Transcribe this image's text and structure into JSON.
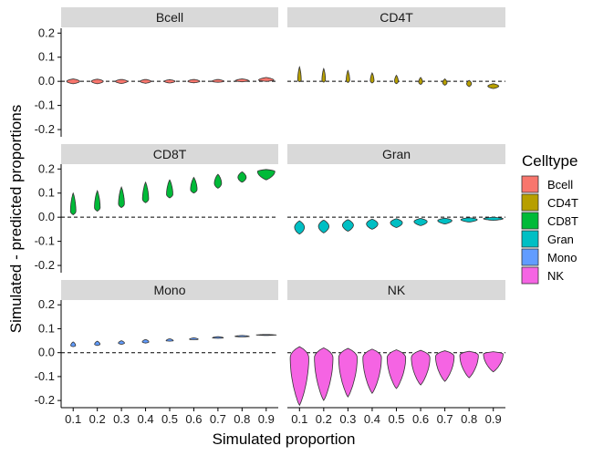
{
  "chart_data": {
    "type": "violin",
    "xlabel": "Simulated proportion",
    "ylabel": "Simulated - predicted proportions",
    "x": [
      0.1,
      0.2,
      0.3,
      0.4,
      0.5,
      0.6,
      0.7,
      0.8,
      0.9
    ],
    "x_tick_labels": [
      "0.1",
      "0.2",
      "0.3",
      "0.4",
      "0.5",
      "0.6",
      "0.7",
      "0.8",
      "0.9"
    ],
    "ylim": [
      -0.23,
      0.22
    ],
    "y_ticks": [
      -0.2,
      -0.1,
      0.0,
      0.1,
      0.2
    ],
    "y_tick_labels": [
      "-0.2",
      "-0.1",
      "0.0",
      "0.1",
      "0.2"
    ],
    "reference_line": 0,
    "legend": {
      "title": "Celltype",
      "position": "right",
      "items": [
        {
          "label": "Bcell",
          "color": "#F8766D"
        },
        {
          "label": "CD4T",
          "color": "#B79F00"
        },
        {
          "label": "CD8T",
          "color": "#00BA38"
        },
        {
          "label": "Gran",
          "color": "#00BFC4"
        },
        {
          "label": "Mono",
          "color": "#619CFF"
        },
        {
          "label": "NK",
          "color": "#F564E3"
        }
      ]
    },
    "panels": [
      {
        "name": "Bcell",
        "color": "#F8766D",
        "ranges": [
          [
            -0.01,
            0.01
          ],
          [
            -0.01,
            0.009
          ],
          [
            -0.009,
            0.008
          ],
          [
            -0.008,
            0.008
          ],
          [
            -0.007,
            0.007
          ],
          [
            -0.006,
            0.008
          ],
          [
            -0.004,
            0.008
          ],
          [
            -0.002,
            0.01
          ],
          [
            0.0,
            0.016
          ]
        ],
        "centers": [
          0,
          0,
          0,
          0,
          0,
          0,
          0,
          0.003,
          0.005
        ],
        "widths": [
          0.6,
          0.55,
          0.55,
          0.5,
          0.5,
          0.55,
          0.55,
          0.6,
          0.7
        ]
      },
      {
        "name": "CD4T",
        "color": "#B79F00",
        "ranges": [
          [
            -0.002,
            0.06
          ],
          [
            -0.004,
            0.053
          ],
          [
            -0.005,
            0.045
          ],
          [
            -0.007,
            0.035
          ],
          [
            -0.01,
            0.025
          ],
          [
            -0.013,
            0.016
          ],
          [
            -0.016,
            0.01
          ],
          [
            -0.022,
            0.004
          ],
          [
            -0.03,
            -0.01
          ]
        ],
        "centers": [
          0.005,
          0.005,
          0.004,
          0.002,
          0,
          -0.003,
          -0.006,
          -0.01,
          -0.02
        ],
        "widths": [
          0.16,
          0.16,
          0.16,
          0.17,
          0.17,
          0.18,
          0.2,
          0.22,
          0.5
        ]
      },
      {
        "name": "CD8T",
        "color": "#00BA38",
        "ranges": [
          [
            0.01,
            0.1
          ],
          [
            0.025,
            0.11
          ],
          [
            0.04,
            0.125
          ],
          [
            0.06,
            0.145
          ],
          [
            0.08,
            0.155
          ],
          [
            0.1,
            0.165
          ],
          [
            0.12,
            0.178
          ],
          [
            0.145,
            0.188
          ],
          [
            0.155,
            0.198
          ]
        ],
        "centers": [
          0.025,
          0.04,
          0.055,
          0.075,
          0.095,
          0.115,
          0.14,
          0.165,
          0.19
        ],
        "widths": [
          0.25,
          0.26,
          0.27,
          0.28,
          0.29,
          0.3,
          0.33,
          0.38,
          0.8
        ]
      },
      {
        "name": "Gran",
        "color": "#00BFC4",
        "ranges": [
          [
            -0.07,
            -0.015
          ],
          [
            -0.065,
            -0.012
          ],
          [
            -0.058,
            -0.01
          ],
          [
            -0.05,
            -0.008
          ],
          [
            -0.043,
            -0.006
          ],
          [
            -0.035,
            -0.005
          ],
          [
            -0.028,
            -0.004
          ],
          [
            -0.02,
            -0.002
          ],
          [
            -0.013,
            0.0
          ]
        ],
        "centers": [
          -0.042,
          -0.038,
          -0.033,
          -0.028,
          -0.023,
          -0.018,
          -0.014,
          -0.01,
          -0.006
        ],
        "widths": [
          0.45,
          0.48,
          0.5,
          0.52,
          0.55,
          0.6,
          0.65,
          0.75,
          0.9
        ]
      },
      {
        "name": "Mono",
        "color": "#619CFF",
        "ranges": [
          [
            0.025,
            0.045
          ],
          [
            0.03,
            0.048
          ],
          [
            0.035,
            0.05
          ],
          [
            0.04,
            0.055
          ],
          [
            0.048,
            0.058
          ],
          [
            0.054,
            0.062
          ],
          [
            0.06,
            0.067
          ],
          [
            0.066,
            0.072
          ],
          [
            0.072,
            0.076
          ]
        ],
        "centers": [
          0.03,
          0.035,
          0.04,
          0.045,
          0.05,
          0.056,
          0.062,
          0.068,
          0.074
        ],
        "widths": [
          0.22,
          0.25,
          0.28,
          0.3,
          0.33,
          0.4,
          0.5,
          0.65,
          0.9
        ]
      },
      {
        "name": "NK",
        "color": "#F564E3",
        "ranges": [
          [
            -0.22,
            0.025
          ],
          [
            -0.2,
            0.02
          ],
          [
            -0.185,
            0.018
          ],
          [
            -0.17,
            0.015
          ],
          [
            -0.15,
            0.012
          ],
          [
            -0.135,
            0.01
          ],
          [
            -0.12,
            0.008
          ],
          [
            -0.105,
            0.006
          ],
          [
            -0.08,
            0.004
          ]
        ],
        "centers": [
          -0.02,
          -0.02,
          -0.02,
          -0.02,
          -0.02,
          -0.02,
          -0.015,
          -0.01,
          -0.005
        ],
        "widths": [
          0.85,
          0.85,
          0.85,
          0.85,
          0.85,
          0.85,
          0.85,
          0.85,
          0.9
        ]
      }
    ]
  }
}
